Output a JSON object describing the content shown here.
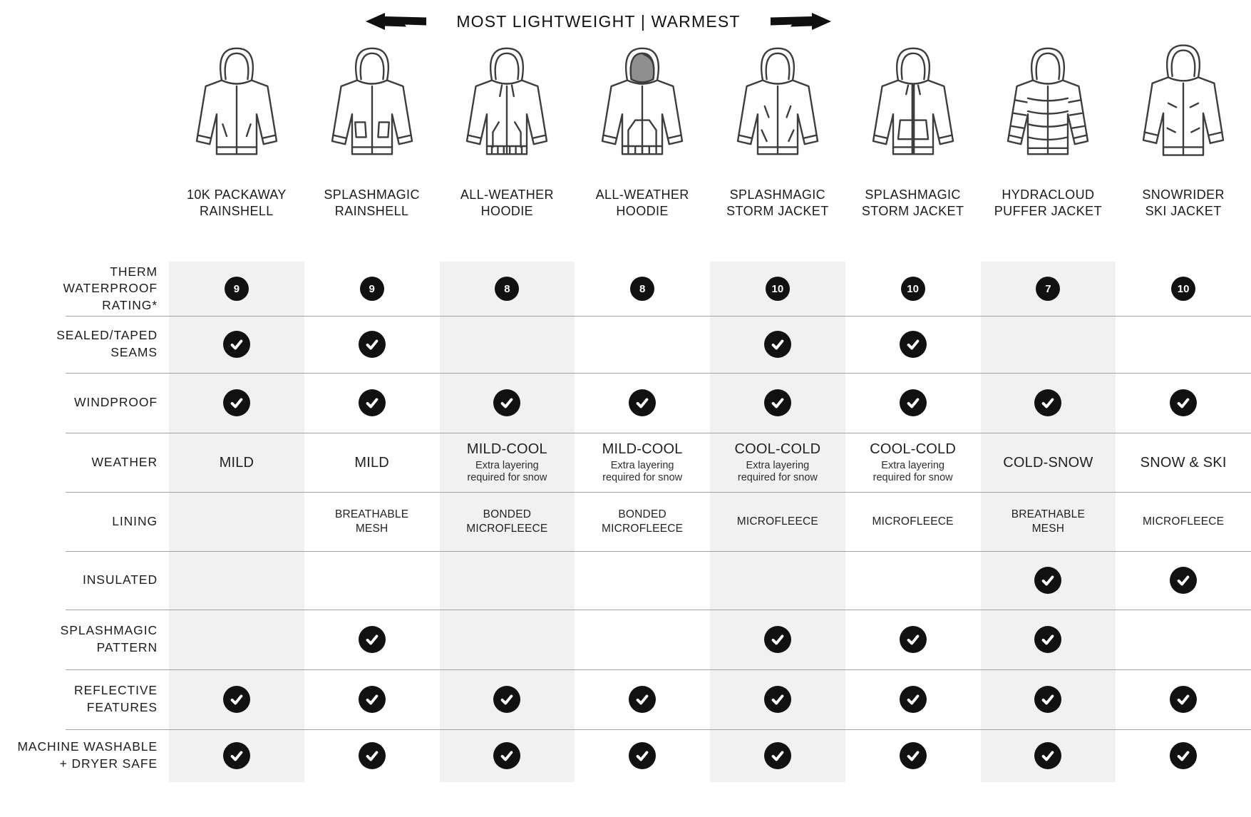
{
  "legend": {
    "title": "MOST LIGHTWEIGHT | WARMEST"
  },
  "products": [
    {
      "name": "10K PACKAWAY\nRAINSHELL",
      "icon": "rainshell-jacket-icon"
    },
    {
      "name": "SPLASHMAGIC\nRAINSHELL",
      "icon": "rainshell-pocket-jacket-icon"
    },
    {
      "name": "ALL-WEATHER\nHOODIE",
      "icon": "hoodie-jacket-icon"
    },
    {
      "name": "ALL-WEATHER\nHOODIE",
      "icon": "hoodie-dark-hood-jacket-icon"
    },
    {
      "name": "SPLASHMAGIC\nSTORM JACKET",
      "icon": "storm-jacket-icon"
    },
    {
      "name": "SPLASHMAGIC\nSTORM JACKET",
      "icon": "anorak-storm-jacket-icon"
    },
    {
      "name": "HYDRACLOUD\nPUFFER JACKET",
      "icon": "puffer-jacket-icon"
    },
    {
      "name": "SNOWRIDER\nSKI JACKET",
      "icon": "ski-jacket-icon"
    }
  ],
  "chart_data": {
    "type": "table",
    "title": "MOST LIGHTWEIGHT | WARMEST",
    "columns": [
      "10K PACKAWAY RAINSHELL",
      "SPLASHMAGIC RAINSHELL",
      "ALL-WEATHER HOODIE",
      "ALL-WEATHER HOODIE",
      "SPLASHMAGIC STORM JACKET",
      "SPLASHMAGIC STORM JACKET",
      "HYDRACLOUD PUFFER JACKET",
      "SNOWRIDER SKI JACKET"
    ],
    "rows": [
      {
        "label": "THERM\nWATERPROOF\nRATING*",
        "type": "rating",
        "values": [
          "9",
          "9",
          "8",
          "8",
          "10",
          "10",
          "7",
          "10"
        ]
      },
      {
        "label": "SEALED/TAPED\nSEAMS",
        "type": "check",
        "values": [
          true,
          true,
          false,
          false,
          true,
          true,
          false,
          false
        ]
      },
      {
        "label": "WINDPROOF",
        "type": "check",
        "values": [
          true,
          true,
          true,
          true,
          true,
          true,
          true,
          true
        ]
      },
      {
        "label": "WEATHER",
        "type": "text",
        "values": [
          {
            "main": "MILD",
            "sub": ""
          },
          {
            "main": "MILD",
            "sub": ""
          },
          {
            "main": "MILD-COOL",
            "sub": "Extra layering\nrequired for snow"
          },
          {
            "main": "MILD-COOL",
            "sub": "Extra layering\nrequired for snow"
          },
          {
            "main": "COOL-COLD",
            "sub": "Extra layering\nrequired for snow"
          },
          {
            "main": "COOL-COLD",
            "sub": "Extra layering\nrequired for snow"
          },
          {
            "main": "COLD-SNOW",
            "sub": ""
          },
          {
            "main": "SNOW & SKI",
            "sub": ""
          }
        ]
      },
      {
        "label": "LINING",
        "type": "text-small",
        "values": [
          "",
          "BREATHABLE\nMESH",
          "BONDED\nMICROFLEECE",
          "BONDED\nMICROFLEECE",
          "MICROFLEECE",
          "MICROFLEECE",
          "BREATHABLE\nMESH",
          "MICROFLEECE"
        ]
      },
      {
        "label": "INSULATED",
        "type": "check",
        "values": [
          false,
          false,
          false,
          false,
          false,
          false,
          true,
          true
        ]
      },
      {
        "label": "SPLASHMAGIC\nPATTERN",
        "type": "check",
        "values": [
          false,
          true,
          false,
          false,
          true,
          true,
          true,
          false
        ]
      },
      {
        "label": "REFLECTIVE\nFEATURES",
        "type": "check",
        "values": [
          true,
          true,
          true,
          true,
          true,
          true,
          true,
          true
        ]
      },
      {
        "label": "MACHINE WASHABLE\n+ DRYER SAFE",
        "type": "check",
        "values": [
          true,
          true,
          true,
          true,
          true,
          true,
          true,
          true
        ]
      }
    ]
  },
  "colors": {
    "stripe": "#f1f1f1",
    "mark_background": "#111111",
    "divider": "#a2a2a2",
    "text": "#1b1b1b"
  }
}
